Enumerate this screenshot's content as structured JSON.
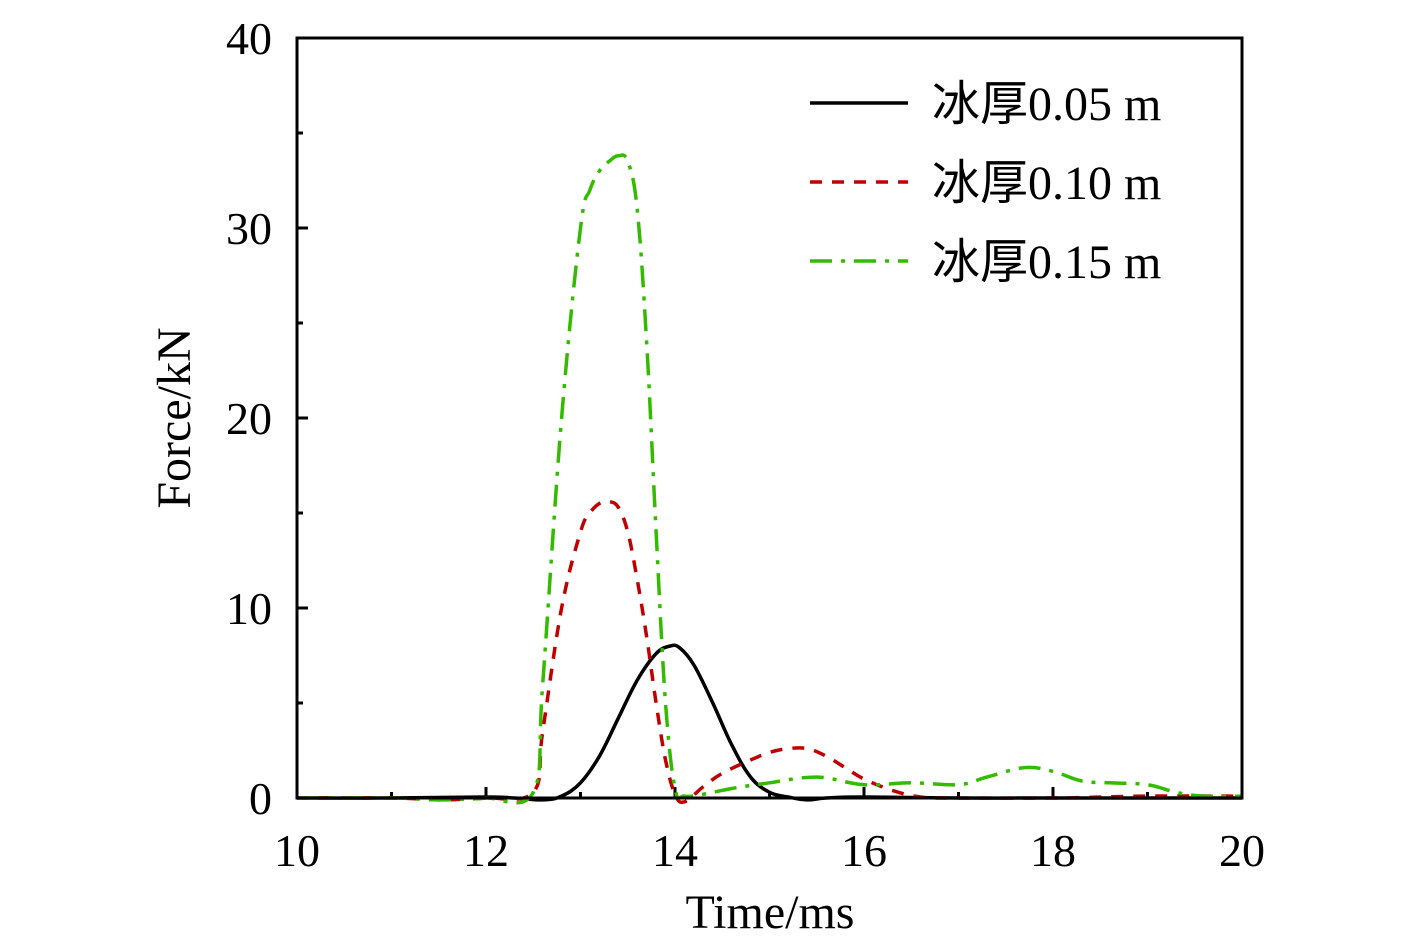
{
  "chart_data": {
    "type": "line",
    "title": "",
    "xlabel": "Time/ms",
    "ylabel": "Force/kN",
    "xlim": [
      10,
      20
    ],
    "ylim": [
      0,
      40
    ],
    "xticks": [
      "10",
      "12",
      "14",
      "16",
      "18",
      "20"
    ],
    "yticks": [
      "0",
      "10",
      "20",
      "30",
      "40"
    ],
    "grid": false,
    "legend_position": "top-right",
    "series": [
      {
        "name": "冰厚0.05 m",
        "color": "#000000",
        "dash": "solid",
        "x": [
          10,
          11,
          12,
          12.3,
          12.6,
          12.8,
          13.0,
          13.2,
          13.4,
          13.6,
          13.8,
          13.95,
          14.05,
          14.2,
          14.4,
          14.6,
          14.8,
          15.0,
          15.2,
          15.4,
          15.6,
          16,
          17,
          18,
          19,
          20
        ],
        "y": [
          0,
          0,
          0.05,
          0,
          -0.1,
          0.1,
          0.8,
          2.2,
          4.2,
          6.2,
          7.6,
          8.0,
          7.9,
          7.0,
          5.0,
          2.8,
          1.1,
          0.3,
          0.05,
          -0.1,
          0,
          0.05,
          0,
          0,
          0,
          0
        ]
      },
      {
        "name": "冰厚0.10 m",
        "color": "#c00000",
        "dash": "dashed",
        "x": [
          10,
          11,
          11.5,
          11.8,
          12,
          12.5,
          12.6,
          12.8,
          13.0,
          13.1,
          13.2,
          13.3,
          13.4,
          13.5,
          13.6,
          13.7,
          13.8,
          13.9,
          14.0,
          14.1,
          14.3,
          14.5,
          14.8,
          15.0,
          15.2,
          15.4,
          15.6,
          15.8,
          16.0,
          16.3,
          16.6,
          17,
          18,
          19,
          20
        ],
        "y": [
          0,
          0,
          -0.1,
          -0.05,
          0,
          0.3,
          3.5,
          10.0,
          14.0,
          15.0,
          15.5,
          15.6,
          15.3,
          14.0,
          11.5,
          8.5,
          5.0,
          2.0,
          0.2,
          -0.2,
          0.6,
          1.3,
          2.0,
          2.4,
          2.6,
          2.6,
          2.2,
          1.6,
          1.0,
          0.4,
          0.05,
          0,
          0,
          0.1,
          0.1
        ]
      },
      {
        "name": "冰厚0.15 m",
        "color": "#33bb00",
        "dash": "dashdot",
        "x": [
          10,
          11,
          11.5,
          11.8,
          12,
          12.5,
          12.6,
          12.8,
          13.0,
          13.1,
          13.2,
          13.3,
          13.4,
          13.5,
          13.6,
          13.7,
          13.8,
          13.9,
          14.0,
          14.1,
          14.3,
          14.6,
          15.0,
          15.5,
          16.0,
          16.5,
          17.0,
          17.3,
          17.7,
          18.0,
          18.3,
          18.6,
          19.0,
          19.3,
          19.6,
          20
        ],
        "y": [
          0,
          0,
          -0.1,
          -0.05,
          0,
          0.3,
          6.0,
          20.0,
          30.0,
          32.0,
          33.0,
          33.5,
          33.8,
          33.5,
          31.0,
          24.0,
          14.0,
          5.0,
          0.5,
          0.1,
          0.2,
          0.5,
          0.8,
          1.1,
          0.7,
          0.8,
          0.7,
          1.1,
          1.6,
          1.4,
          0.9,
          0.8,
          0.7,
          0.3,
          0.1,
          0.1
        ]
      }
    ]
  }
}
